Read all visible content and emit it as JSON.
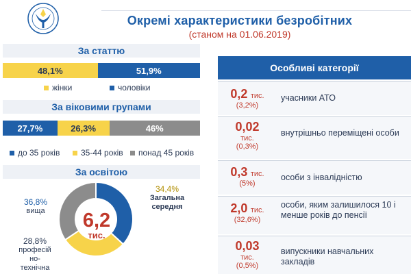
{
  "header": {
    "title": "Окремі характеристики безробітних",
    "subtitle": "(станом на 01.06.2019)"
  },
  "colors": {
    "blue": "#1f5fa8",
    "yellow": "#f7d34a",
    "grey": "#8c8c8c",
    "red": "#c0392b"
  },
  "gender": {
    "heading": "За статтю",
    "female_pct": "48,1%",
    "male_pct": "51,9%",
    "female_share": 48.1,
    "male_share": 51.9,
    "legend_female": "жінки",
    "legend_male": "чоловіки"
  },
  "age": {
    "heading": "За віковими групами",
    "groups": [
      {
        "pct": "27,7%",
        "share": 27.7,
        "legend": "до 35 років",
        "color": "blue"
      },
      {
        "pct": "26,3%",
        "share": 26.3,
        "legend": "35-44 років",
        "color": "yellow"
      },
      {
        "pct": "46%",
        "share": 46,
        "legend": "понад 45 років",
        "color": "grey"
      }
    ]
  },
  "education": {
    "heading": "За освітою",
    "total_value": "6,2",
    "total_unit": "тис.",
    "segments": [
      {
        "pct": "36,8%",
        "share": 36.8,
        "label": "вища",
        "color": "blue"
      },
      {
        "pct": "28,8%",
        "share": 28.8,
        "label_lines": [
          "професій",
          "но-",
          "технічна"
        ],
        "color": "yellow"
      },
      {
        "pct": "34,4%",
        "share": 34.4,
        "label_lines": [
          "Загальна",
          "середня"
        ],
        "color": "grey"
      }
    ]
  },
  "categories": {
    "heading": "Особливі категорії",
    "rows": [
      {
        "value": "0,2",
        "unit": "тис.",
        "pct": "(3,2%)",
        "desc": "учасники АТО"
      },
      {
        "value": "0,02",
        "unit": "тис.",
        "pct": "(0,3%)",
        "desc": "внутрішньо переміщені особи"
      },
      {
        "value": "0,3",
        "unit": "тис.",
        "pct": "(5%)",
        "desc": "особи з інвалідністю"
      },
      {
        "value": "2,0",
        "unit": "тис.",
        "pct": "(32,6%)",
        "desc": "особи, яким залишилося 10 і менше років до пенсії"
      },
      {
        "value": "0,03",
        "unit": "тис.",
        "pct": "(0,5%)",
        "desc": "випускники навчальних закладів"
      }
    ]
  }
}
